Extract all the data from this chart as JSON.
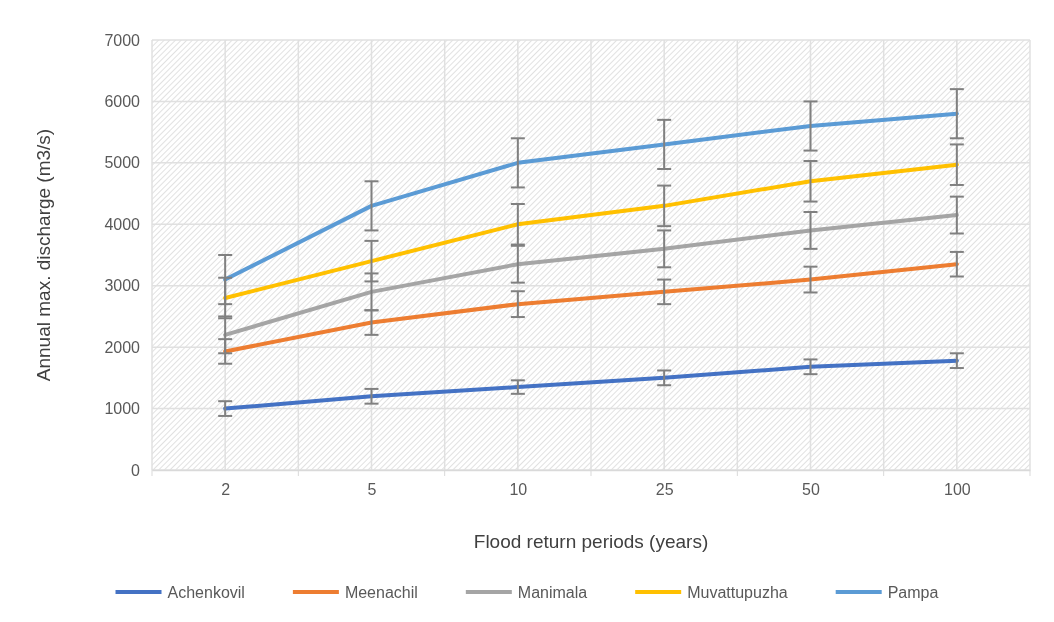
{
  "chart_data": {
    "type": "line",
    "xlabel": "Flood return periods (years)",
    "ylabel": "Annual max. discharge (m3/s)",
    "categories": [
      "2",
      "5",
      "10",
      "25",
      "50",
      "100"
    ],
    "ylim": [
      0,
      7000
    ],
    "yticks": [
      0,
      1000,
      2000,
      3000,
      4000,
      5000,
      6000,
      7000
    ],
    "grid": true,
    "legend": "bottom",
    "marker": "none",
    "line_style": "solid",
    "series": [
      {
        "name": "Achenkovil",
        "color": "#4472c4",
        "values": [
          1000,
          1200,
          1350,
          1500,
          1680,
          1780
        ],
        "errors": [
          120,
          120,
          110,
          120,
          120,
          120
        ]
      },
      {
        "name": "Meenachil",
        "color": "#ed7d31",
        "values": [
          1930,
          2400,
          2700,
          2900,
          3100,
          3350
        ],
        "errors": [
          200,
          200,
          210,
          200,
          210,
          200
        ]
      },
      {
        "name": "Manimala",
        "color": "#a5a5a5",
        "values": [
          2200,
          2900,
          3350,
          3600,
          3900,
          4150
        ],
        "errors": [
          300,
          300,
          300,
          300,
          300,
          300
        ]
      },
      {
        "name": "Muvattupuzha",
        "color": "#ffc000",
        "values": [
          2800,
          3400,
          4000,
          4300,
          4700,
          4970
        ],
        "errors": [
          330,
          330,
          330,
          330,
          330,
          330
        ]
      },
      {
        "name": "Pampa",
        "color": "#5b9bd5",
        "values": [
          3100,
          4300,
          5000,
          5300,
          5600,
          5800
        ],
        "errors": [
          400,
          400,
          400,
          400,
          400,
          400
        ]
      }
    ]
  }
}
